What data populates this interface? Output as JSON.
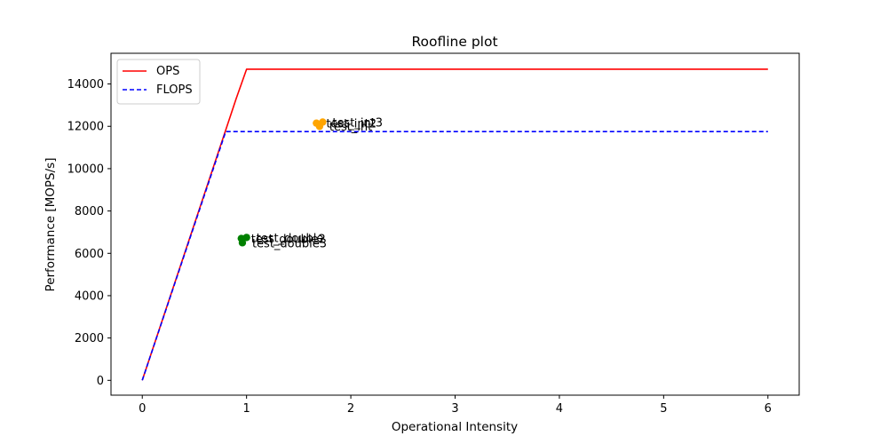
{
  "chart_data": {
    "type": "line",
    "title": "Roofline plot",
    "xlabel": "Operational Intensity",
    "ylabel": "Performance [MOPS/s]",
    "xlim": [
      -0.3,
      6.3
    ],
    "ylim": [
      -700,
      15450
    ],
    "xticks": [
      0,
      1,
      2,
      3,
      4,
      5,
      6
    ],
    "yticks": [
      0,
      2000,
      4000,
      6000,
      8000,
      10000,
      12000,
      14000
    ],
    "grid": false,
    "legend_position": "top-left",
    "series": [
      {
        "name": "OPS",
        "style": "solid",
        "color": "#ff0000",
        "x": [
          0,
          0.9,
          1,
          6
        ],
        "y": [
          0,
          13300,
          14700,
          14700
        ]
      },
      {
        "name": "FLOPS",
        "style": "dashed",
        "color": "#0000ff",
        "x": [
          0,
          0.8,
          6
        ],
        "y": [
          0,
          11750,
          11750
        ]
      }
    ],
    "points": [
      {
        "label": "test_int",
        "x": 1.7,
        "y": 12000,
        "color": "#ffa500"
      },
      {
        "label": "test_int2",
        "x": 1.67,
        "y": 12150,
        "color": "#ffa500"
      },
      {
        "label": "test_int3",
        "x": 1.73,
        "y": 12200,
        "color": "#ffa500"
      },
      {
        "label": "test_double",
        "x": 1.0,
        "y": 6750,
        "color": "#008000"
      },
      {
        "label": "test_double2",
        "x": 0.95,
        "y": 6700,
        "color": "#008000"
      },
      {
        "label": "test_double3",
        "x": 0.96,
        "y": 6500,
        "color": "#008000"
      }
    ]
  }
}
